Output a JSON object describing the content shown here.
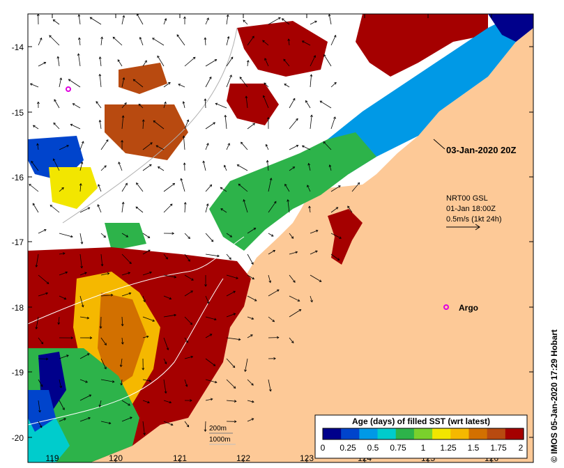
{
  "map": {
    "lon_ticks": [
      "119",
      "120",
      "121",
      "122",
      "123",
      "124",
      "125",
      "126"
    ],
    "lat_ticks": [
      "-14",
      "-15",
      "-16",
      "-17",
      "-18",
      "-19",
      "-20"
    ],
    "land_color": "#fdc997",
    "ocean_cloud_color": "#ffffff"
  },
  "annotations": {
    "satellite_time": "03-Jan-2020 20Z",
    "current_source": "NRT00 GSL",
    "current_time": "01-Jan 18:00Z",
    "current_scale": "0.5m/s (1kt 24h)",
    "argo_label": "Argo"
  },
  "contours": {
    "label_200m": "200m",
    "label_1000m": "1000m"
  },
  "colorbar": {
    "title": "Age (days) of filled SST (wrt latest)",
    "ticks": [
      "0",
      "0.25",
      "0.5",
      "0.75",
      "1",
      "1.25",
      "1.5",
      "1.75",
      "2"
    ],
    "colors": [
      "#00008b",
      "#0044cc",
      "#0099e6",
      "#00cccc",
      "#2db34a",
      "#7ad12c",
      "#f2e600",
      "#f5b800",
      "#d27000",
      "#b84a10",
      "#a50000"
    ]
  },
  "credit": "© IMOS 05-Jan-2020 17:29 Hobart"
}
